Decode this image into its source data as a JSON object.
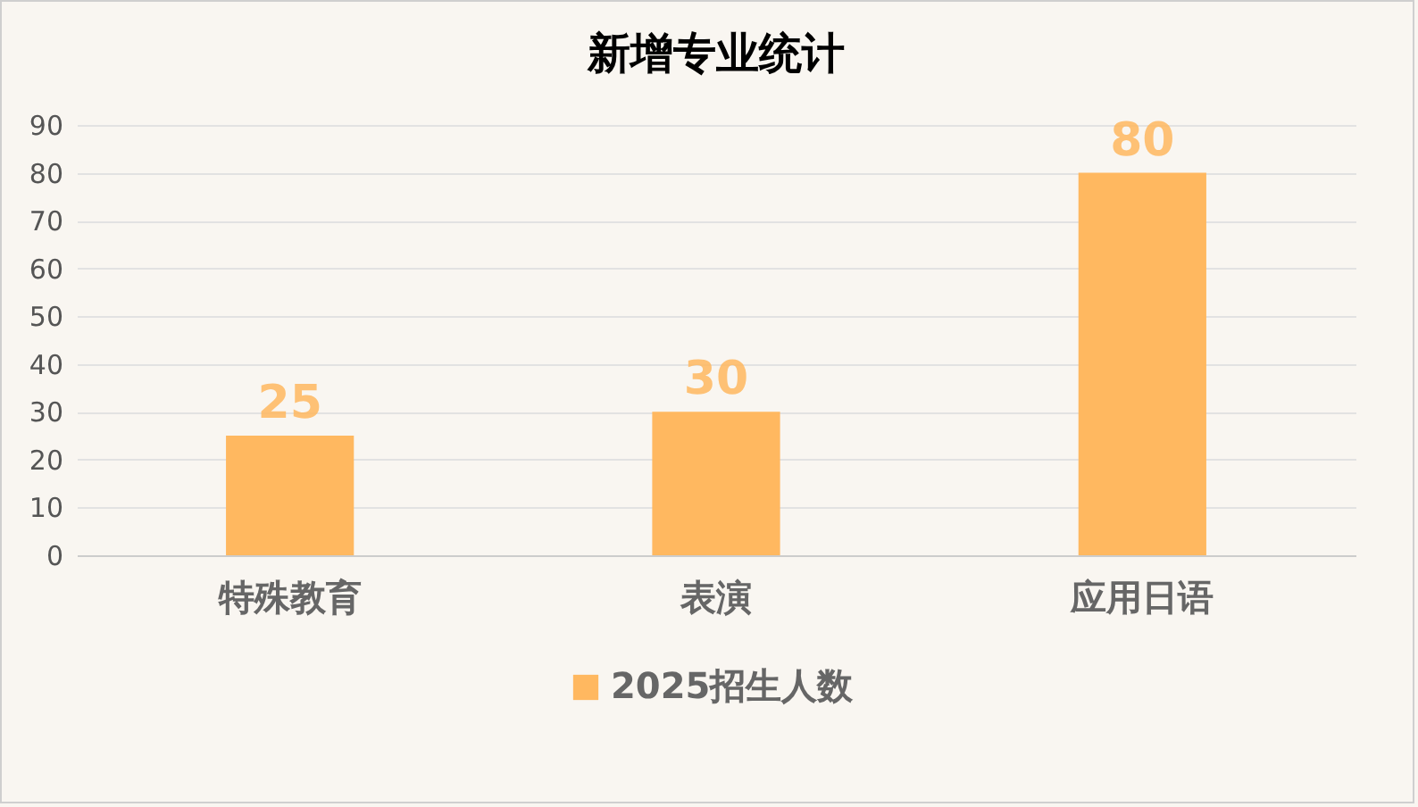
{
  "chart_data": {
    "type": "bar",
    "title": "新增专业统计",
    "categories": [
      "特殊教育",
      "表演",
      "应用日语"
    ],
    "series": [
      {
        "name": "2025招生人数",
        "color": "#ffb860",
        "values": [
          25,
          30,
          80
        ]
      }
    ],
    "ylim": [
      0,
      90
    ],
    "yticks": [
      0,
      10,
      20,
      30,
      40,
      50,
      60,
      70,
      80,
      90
    ],
    "grid": "y",
    "legend": "bottom",
    "data_labels": true
  }
}
